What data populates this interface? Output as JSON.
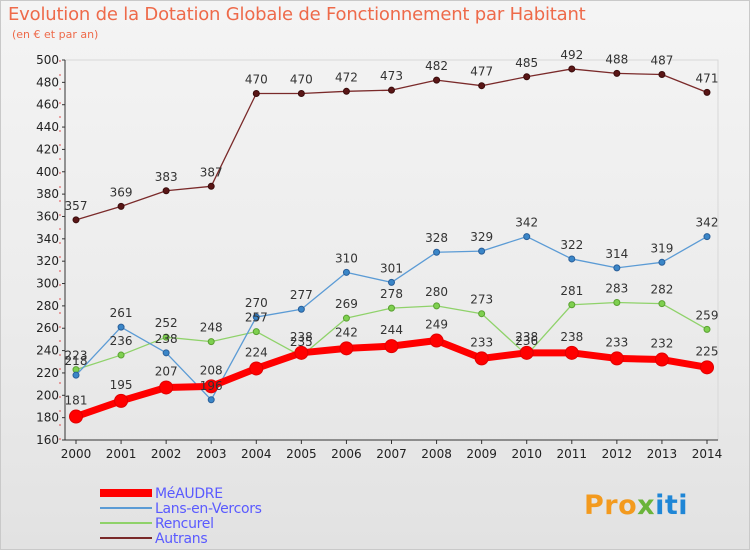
{
  "title": "Evolution de la Dotation Globale de Fonctionnement par Habitant",
  "subtitle": "(en € et par an)",
  "brand": [
    "Pro",
    "x",
    "iti"
  ],
  "chart_data": {
    "type": "line",
    "x": [
      "2000",
      "2001",
      "2002",
      "2003",
      "2004",
      "2005",
      "2006",
      "2007",
      "2008",
      "2009",
      "2010",
      "2011",
      "2012",
      "2013",
      "2014"
    ],
    "ylim": [
      160,
      500
    ],
    "yticks": [
      160,
      180,
      200,
      220,
      240,
      260,
      280,
      300,
      320,
      340,
      360,
      380,
      400,
      420,
      440,
      460,
      480,
      500
    ],
    "grid": false,
    "legend_position": "bottom-left",
    "series": [
      {
        "name": "MéAUDRE",
        "color": "#ff0000",
        "values": [
          181,
          195,
          207,
          208,
          224,
          238,
          242,
          244,
          249,
          233,
          238,
          238,
          233,
          232,
          225
        ]
      },
      {
        "name": "Lans-en-Vercors",
        "color": "#5b9bd5",
        "values": [
          218,
          261,
          238,
          196,
          270,
          277,
          310,
          301,
          328,
          329,
          342,
          322,
          314,
          319,
          342
        ]
      },
      {
        "name": "Rencurel",
        "color": "#8fd26a",
        "values": [
          223,
          236,
          252,
          248,
          257,
          235,
          269,
          278,
          280,
          273,
          236,
          281,
          283,
          282,
          259
        ]
      },
      {
        "name": "Autrans",
        "color": "#7a2a2a",
        "values": [
          357,
          369,
          383,
          387,
          470,
          470,
          472,
          473,
          482,
          477,
          485,
          492,
          488,
          487,
          471
        ]
      }
    ],
    "data_labels": {
      "MéAUDRE": [
        "181",
        "195",
        "207",
        "208",
        "224",
        "238",
        "242",
        "244",
        "249",
        "233",
        "238",
        "238",
        "233",
        "232",
        "225"
      ],
      "Lans-en-Vercors": [
        "218",
        "261",
        "238",
        "196",
        "270",
        "277",
        "310",
        "301",
        "328",
        "329",
        "342",
        "322",
        "314",
        "319",
        "342"
      ],
      "Rencurel": [
        "223",
        "236",
        "252",
        "248",
        "257",
        "235",
        "269",
        "278",
        "280",
        "273",
        "236",
        "281",
        "283",
        "282",
        "259"
      ],
      "Autrans": [
        "357",
        "369",
        "383",
        "387",
        "470",
        "470",
        "472",
        "473",
        "482",
        "477",
        "485",
        "492",
        "488",
        "487",
        "471"
      ]
    }
  }
}
